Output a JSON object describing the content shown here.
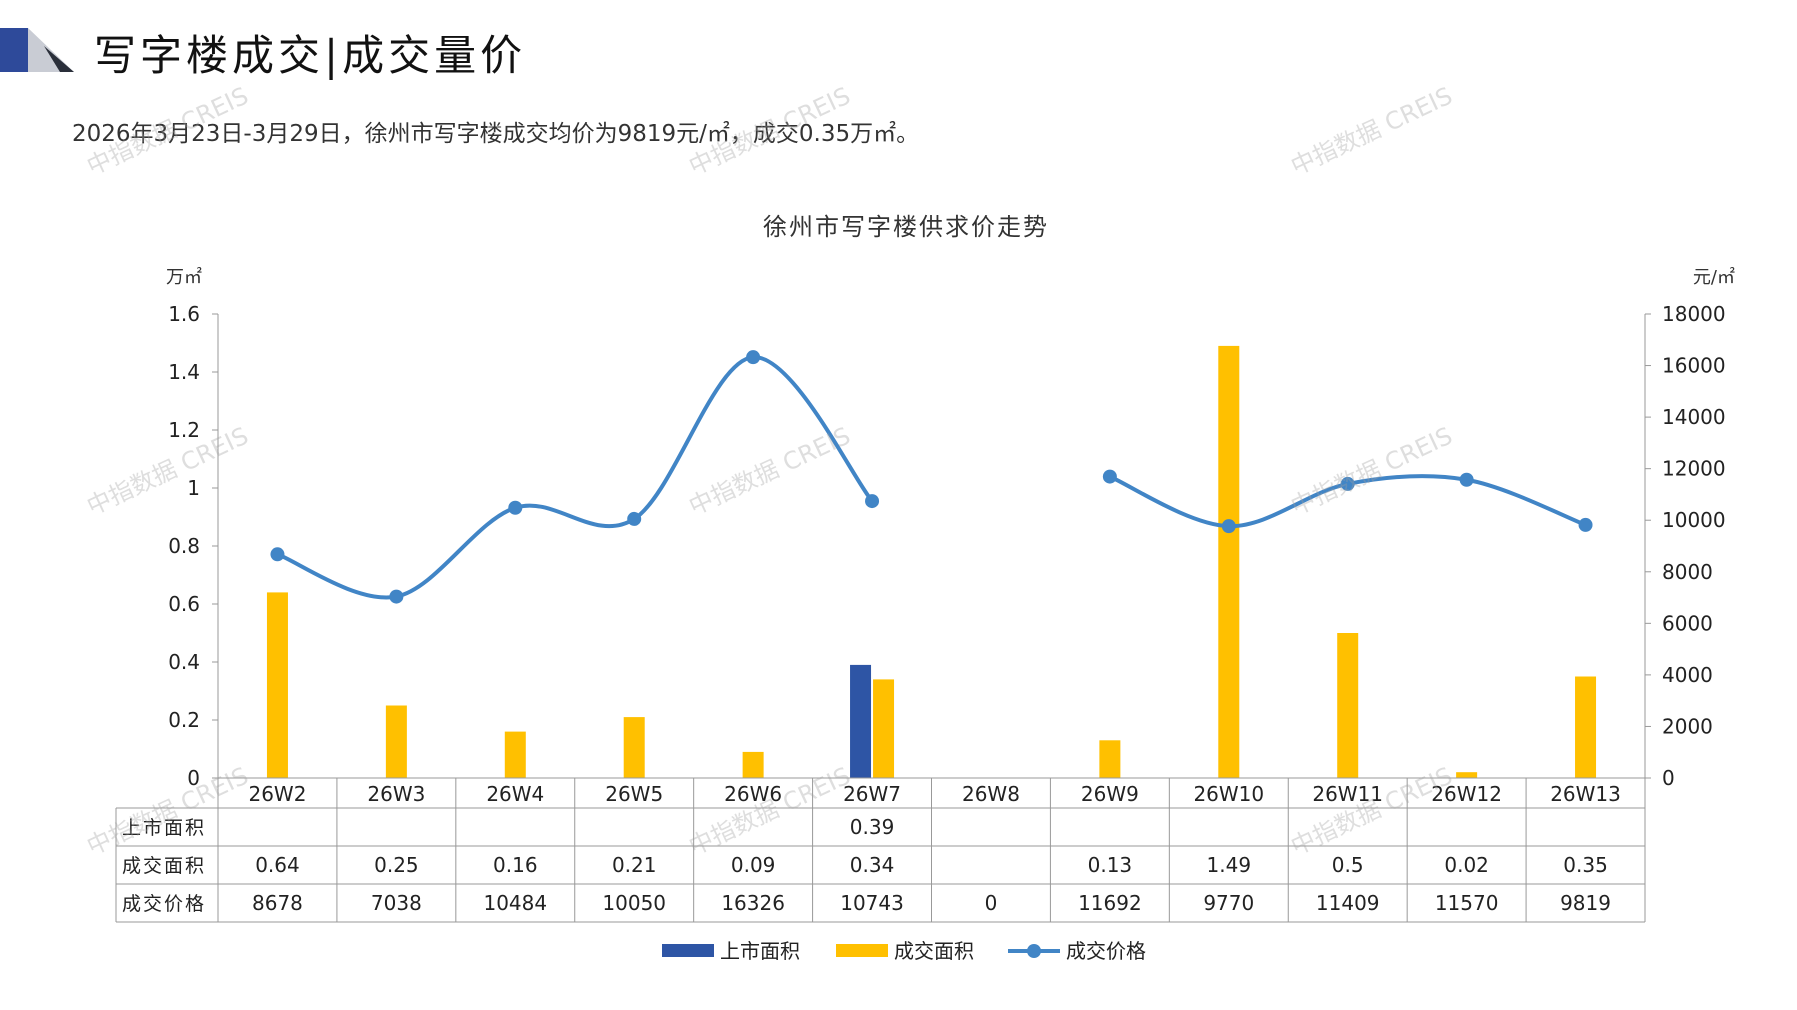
{
  "header": {
    "title": "写字楼成交|成交量价",
    "summary": "2026年3月23日-3月29日，徐州市写字楼成交均价为9819元/㎡，成交0.35万㎡。"
  },
  "watermark": "中指数据 CREIS",
  "colors": {
    "listed": "#2e55a5",
    "deal_area": "#ffc000",
    "deal_price": "#4185c6",
    "logo_dark": "#2e4a9a",
    "logo_light": "#c9ccd4"
  },
  "chart_data": {
    "type": "bar",
    "title": "徐州市写字楼供求价走势",
    "ylabel_left": "万㎡",
    "ylabel_right": "元/㎡",
    "ylim_left": [
      0,
      1.6
    ],
    "yticks_left": [
      "0",
      "0.2",
      "0.4",
      "0.6",
      "0.8",
      "1",
      "1.2",
      "1.4",
      "1.6"
    ],
    "ylim_right": [
      0,
      18000
    ],
    "yticks_right": [
      "0",
      "2000",
      "4000",
      "6000",
      "8000",
      "10000",
      "12000",
      "14000",
      "16000",
      "18000"
    ],
    "categories": [
      "26W2",
      "26W3",
      "26W4",
      "26W5",
      "26W6",
      "26W7",
      "26W8",
      "26W9",
      "26W10",
      "26W11",
      "26W12",
      "26W13"
    ],
    "series": [
      {
        "name": "上市面积",
        "type": "bar",
        "axis": "left",
        "values": [
          null,
          null,
          null,
          null,
          null,
          0.39,
          null,
          null,
          null,
          null,
          null,
          null
        ],
        "labels": [
          "",
          "",
          "",
          "",
          "",
          "0.39",
          "",
          "",
          "",
          "",
          "",
          ""
        ]
      },
      {
        "name": "成交面积",
        "type": "bar",
        "axis": "left",
        "values": [
          0.64,
          0.25,
          0.16,
          0.21,
          0.09,
          0.34,
          null,
          0.13,
          1.49,
          0.5,
          0.02,
          0.35
        ],
        "labels": [
          "0.64",
          "0.25",
          "0.16",
          "0.21",
          "0.09",
          "0.34",
          "",
          "0.13",
          "1.49",
          "0.5",
          "0.02",
          "0.35"
        ]
      },
      {
        "name": "成交价格",
        "type": "line",
        "axis": "right",
        "values": [
          8678,
          7038,
          10484,
          10050,
          16326,
          10743,
          0,
          11692,
          9770,
          11409,
          11570,
          9819
        ],
        "labels": [
          "8678",
          "7038",
          "10484",
          "10050",
          "16326",
          "10743",
          "0",
          "11692",
          "9770",
          "11409",
          "11570",
          "9819"
        ]
      }
    ],
    "legend": "bottom",
    "grid": false,
    "data_table": true
  }
}
